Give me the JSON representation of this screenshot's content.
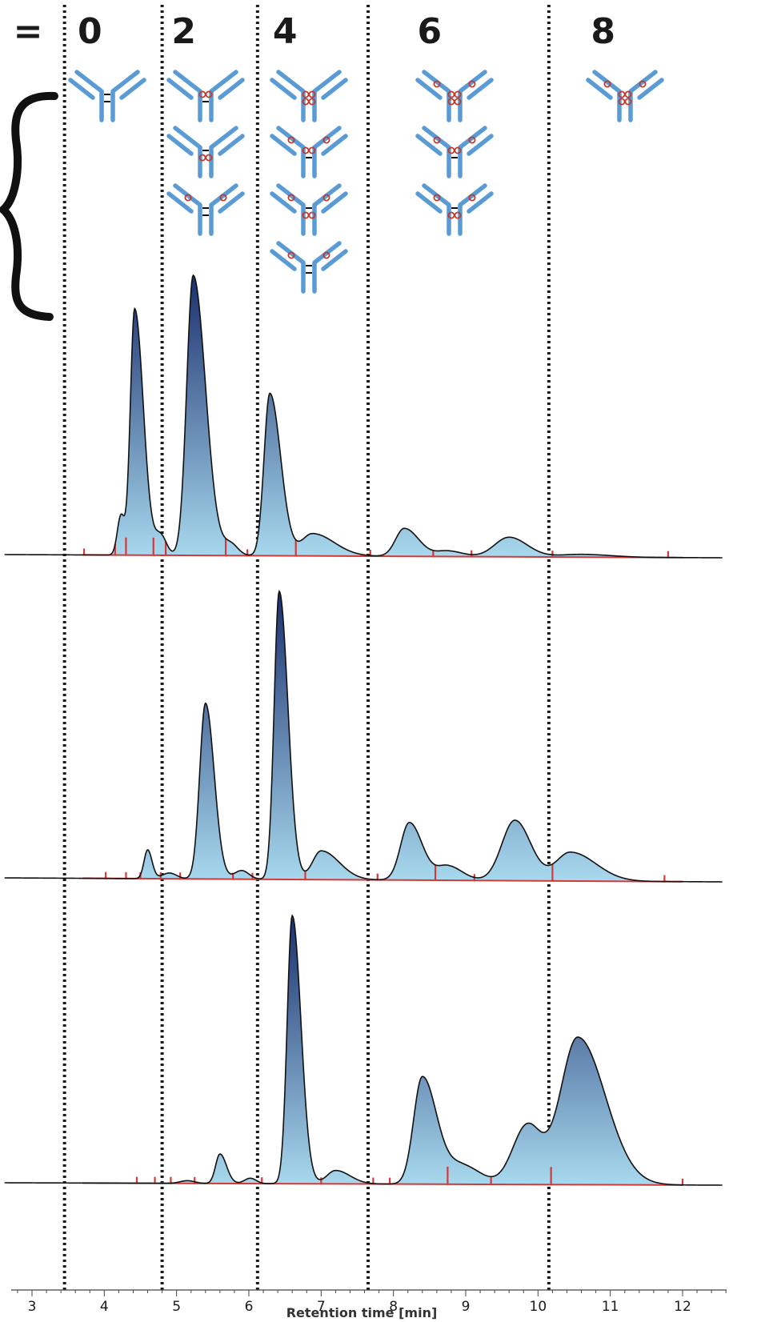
{
  "chart_data": {
    "type": "area",
    "xlabel": "Retention time [min]",
    "xlim": [
      2.7,
      12.6
    ],
    "ticks": [
      3,
      4,
      5,
      6,
      7,
      8,
      9,
      10,
      11,
      12
    ],
    "tick_labels": [
      "3",
      "4",
      "5",
      "6",
      "7",
      "8",
      "9",
      "10",
      "11",
      "12"
    ],
    "header_symbol": "=",
    "dar_labels": [
      {
        "text": "0",
        "x": 3.8
      },
      {
        "text": "2",
        "x": 5.1
      },
      {
        "text": "4",
        "x": 6.5
      },
      {
        "text": "6",
        "x": 8.5
      },
      {
        "text": "8",
        "x": 10.9
      }
    ],
    "boundaries": [
      3.45,
      4.8,
      6.12,
      7.65,
      10.15
    ],
    "species_counts": [
      1,
      3,
      4,
      3,
      1
    ],
    "panels": [
      {
        "peaks": [
          {
            "rt": 4.23,
            "h": 0.14,
            "wl": 0.05,
            "wr": 0.05
          },
          {
            "rt": 4.42,
            "h": 0.88,
            "wl": 0.06,
            "wr": 0.12
          },
          {
            "rt": 4.78,
            "h": 0.07,
            "wl": 0.08,
            "wr": 0.08
          },
          {
            "rt": 5.23,
            "h": 1.0,
            "wl": 0.09,
            "wr": 0.17
          },
          {
            "rt": 5.75,
            "h": 0.04,
            "wl": 0.1,
            "wr": 0.1
          },
          {
            "rt": 6.29,
            "h": 0.58,
            "wl": 0.08,
            "wr": 0.15
          },
          {
            "rt": 6.88,
            "h": 0.08,
            "wl": 0.15,
            "wr": 0.3
          },
          {
            "rt": 8.15,
            "h": 0.1,
            "wl": 0.12,
            "wr": 0.2
          },
          {
            "rt": 8.75,
            "h": 0.02,
            "wl": 0.15,
            "wr": 0.2
          },
          {
            "rt": 9.6,
            "h": 0.07,
            "wl": 0.2,
            "wr": 0.25
          },
          {
            "rt": 10.6,
            "h": 0.01,
            "wl": 0.3,
            "wr": 0.4
          }
        ],
        "integration_marks": [
          3.72,
          4.15,
          4.3,
          4.68,
          4.85,
          5.68,
          5.98,
          6.65,
          7.68,
          8.55,
          9.08,
          10.2,
          11.8
        ]
      },
      {
        "peaks": [
          {
            "rt": 4.6,
            "h": 0.1,
            "wl": 0.05,
            "wr": 0.06
          },
          {
            "rt": 4.9,
            "h": 0.02,
            "wl": 0.1,
            "wr": 0.1
          },
          {
            "rt": 5.4,
            "h": 0.61,
            "wl": 0.08,
            "wr": 0.12
          },
          {
            "rt": 5.9,
            "h": 0.03,
            "wl": 0.1,
            "wr": 0.1
          },
          {
            "rt": 6.42,
            "h": 1.0,
            "wl": 0.07,
            "wr": 0.12
          },
          {
            "rt": 7.0,
            "h": 0.1,
            "wl": 0.12,
            "wr": 0.25
          },
          {
            "rt": 8.22,
            "h": 0.2,
            "wl": 0.12,
            "wr": 0.18
          },
          {
            "rt": 8.75,
            "h": 0.05,
            "wl": 0.15,
            "wr": 0.2
          },
          {
            "rt": 9.68,
            "h": 0.21,
            "wl": 0.18,
            "wr": 0.22
          },
          {
            "rt": 10.45,
            "h": 0.1,
            "wl": 0.2,
            "wr": 0.35
          }
        ],
        "integration_marks": [
          4.02,
          4.3,
          4.5,
          4.78,
          5.05,
          5.78,
          6.05,
          6.78,
          7.78,
          8.58,
          9.12,
          10.2,
          11.75
        ]
      },
      {
        "peaks": [
          {
            "rt": 5.15,
            "h": 0.01,
            "wl": 0.1,
            "wr": 0.1
          },
          {
            "rt": 5.6,
            "h": 0.11,
            "wl": 0.06,
            "wr": 0.09
          },
          {
            "rt": 6.02,
            "h": 0.02,
            "wl": 0.08,
            "wr": 0.08
          },
          {
            "rt": 6.6,
            "h": 1.0,
            "wl": 0.07,
            "wr": 0.12
          },
          {
            "rt": 7.2,
            "h": 0.05,
            "wl": 0.12,
            "wr": 0.2
          },
          {
            "rt": 8.4,
            "h": 0.4,
            "wl": 0.12,
            "wr": 0.2
          },
          {
            "rt": 8.95,
            "h": 0.07,
            "wl": 0.2,
            "wr": 0.25
          },
          {
            "rt": 9.85,
            "h": 0.22,
            "wl": 0.2,
            "wr": 0.2
          },
          {
            "rt": 10.55,
            "h": 0.55,
            "wl": 0.24,
            "wr": 0.38
          }
        ],
        "integration_marks": [
          4.45,
          4.7,
          4.92,
          5.25,
          6.18,
          7.0,
          7.72,
          7.95,
          8.75,
          9.35,
          10.18,
          12.0
        ]
      }
    ],
    "colors": {
      "peak_top": "#1b2f6e",
      "peak_bottom": "#a8d9ee",
      "baseline": "#111111",
      "integration": "#d23a3a",
      "antibody": "#5b9bd5",
      "drug": "#c0392b",
      "boundary": "#1a1a1a",
      "brace": "#111111"
    }
  }
}
